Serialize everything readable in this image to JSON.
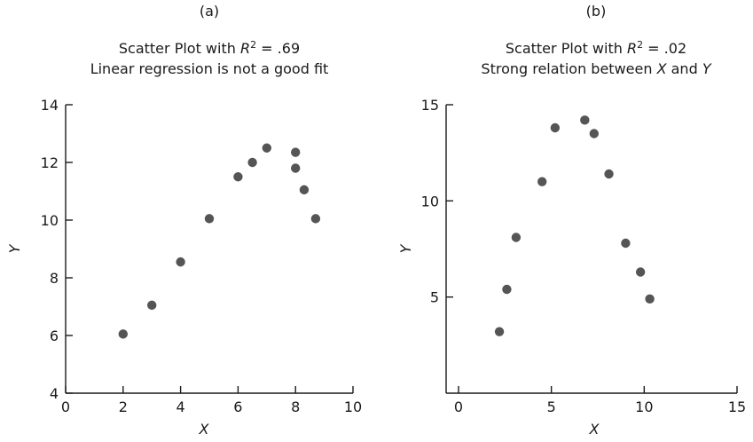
{
  "chart_data": [
    {
      "type": "scatter",
      "panel_label": "(a)",
      "title_prefix": "Scatter Plot with ",
      "title_var": "R",
      "title_sup": "2",
      "title_suffix": " = .69",
      "subtitle_parts": [
        "Linear regression is not a good fit"
      ],
      "xlabel": "X",
      "ylabel": "Y",
      "xlim": [
        0,
        10
      ],
      "ylim": [
        4,
        14
      ],
      "xticks": [
        "0",
        "2",
        "4",
        "6",
        "8",
        "10"
      ],
      "xtick_values": [
        0,
        2,
        4,
        6,
        8,
        10
      ],
      "yticks": [
        "4",
        "6",
        "8",
        "10",
        "12",
        "14"
      ],
      "ytick_values": [
        4,
        6,
        8,
        10,
        12,
        14
      ],
      "points": [
        [
          2,
          6.05
        ],
        [
          3,
          7.05
        ],
        [
          4,
          8.55
        ],
        [
          5,
          10.05
        ],
        [
          6,
          11.5
        ],
        [
          6.5,
          12.0
        ],
        [
          7,
          12.5
        ],
        [
          8,
          12.35
        ],
        [
          8,
          11.8
        ],
        [
          8.3,
          11.05
        ],
        [
          8.7,
          10.05
        ]
      ],
      "grid": false,
      "point_color": "#555555"
    },
    {
      "type": "scatter",
      "panel_label": "(b)",
      "title_prefix": "Scatter Plot with ",
      "title_var": "R",
      "title_sup": "2",
      "title_suffix": " = .02",
      "subtitle_parts": [
        "Strong relation between ",
        "X",
        " and ",
        "Y"
      ],
      "xlabel": "X",
      "ylabel": "Y",
      "xlim": [
        0,
        15
      ],
      "ylim": [
        0,
        15
      ],
      "xticks": [
        "0",
        "5",
        "10",
        "15"
      ],
      "xtick_values": [
        0,
        5,
        10,
        15
      ],
      "yticks": [
        "5",
        "10",
        "15"
      ],
      "ytick_values": [
        5,
        10,
        15
      ],
      "points": [
        [
          2.2,
          3.2
        ],
        [
          2.6,
          5.4
        ],
        [
          3.1,
          8.1
        ],
        [
          4.5,
          11.0
        ],
        [
          5.2,
          13.8
        ],
        [
          6.8,
          14.2
        ],
        [
          7.3,
          13.5
        ],
        [
          8.1,
          11.4
        ],
        [
          9.0,
          7.8
        ],
        [
          9.8,
          6.3
        ],
        [
          10.3,
          4.9
        ]
      ],
      "grid": false,
      "point_color": "#555555"
    }
  ]
}
